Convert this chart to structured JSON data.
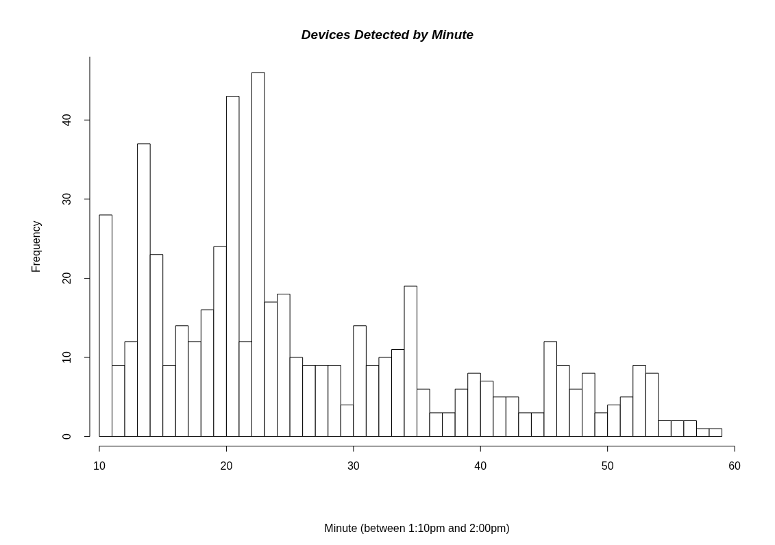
{
  "chart_data": {
    "type": "histogram",
    "title": "Devices Detected by Minute",
    "xlabel": "Minute (between 1:10pm and 2:00pm)",
    "ylabel": "Frequency",
    "bins": [
      10,
      11,
      12,
      13,
      14,
      15,
      16,
      17,
      18,
      19,
      20,
      21,
      22,
      23,
      24,
      25,
      26,
      27,
      28,
      29,
      30,
      31,
      32,
      33,
      34,
      35,
      36,
      37,
      38,
      39,
      40,
      41,
      42,
      43,
      44,
      45,
      46,
      47,
      48,
      49,
      50,
      51,
      52,
      53,
      54,
      55,
      56,
      57,
      58,
      59
    ],
    "values": [
      28,
      9,
      12,
      37,
      23,
      9,
      14,
      12,
      16,
      24,
      43,
      12,
      46,
      17,
      18,
      10,
      9,
      9,
      9,
      4,
      14,
      9,
      10,
      11,
      19,
      6,
      3,
      3,
      6,
      8,
      7,
      5,
      5,
      3,
      3,
      12,
      9,
      6,
      8,
      3,
      4,
      5,
      9,
      8,
      2,
      2,
      2,
      1,
      1
    ],
    "color": "#ffffff",
    "xlim": [
      10,
      60
    ],
    "ylim": [
      0,
      48
    ],
    "xticks": [
      10,
      20,
      30,
      40,
      50,
      60
    ],
    "yticks": [
      0,
      10,
      20,
      30,
      40
    ],
    "grid": false,
    "legend": false
  }
}
